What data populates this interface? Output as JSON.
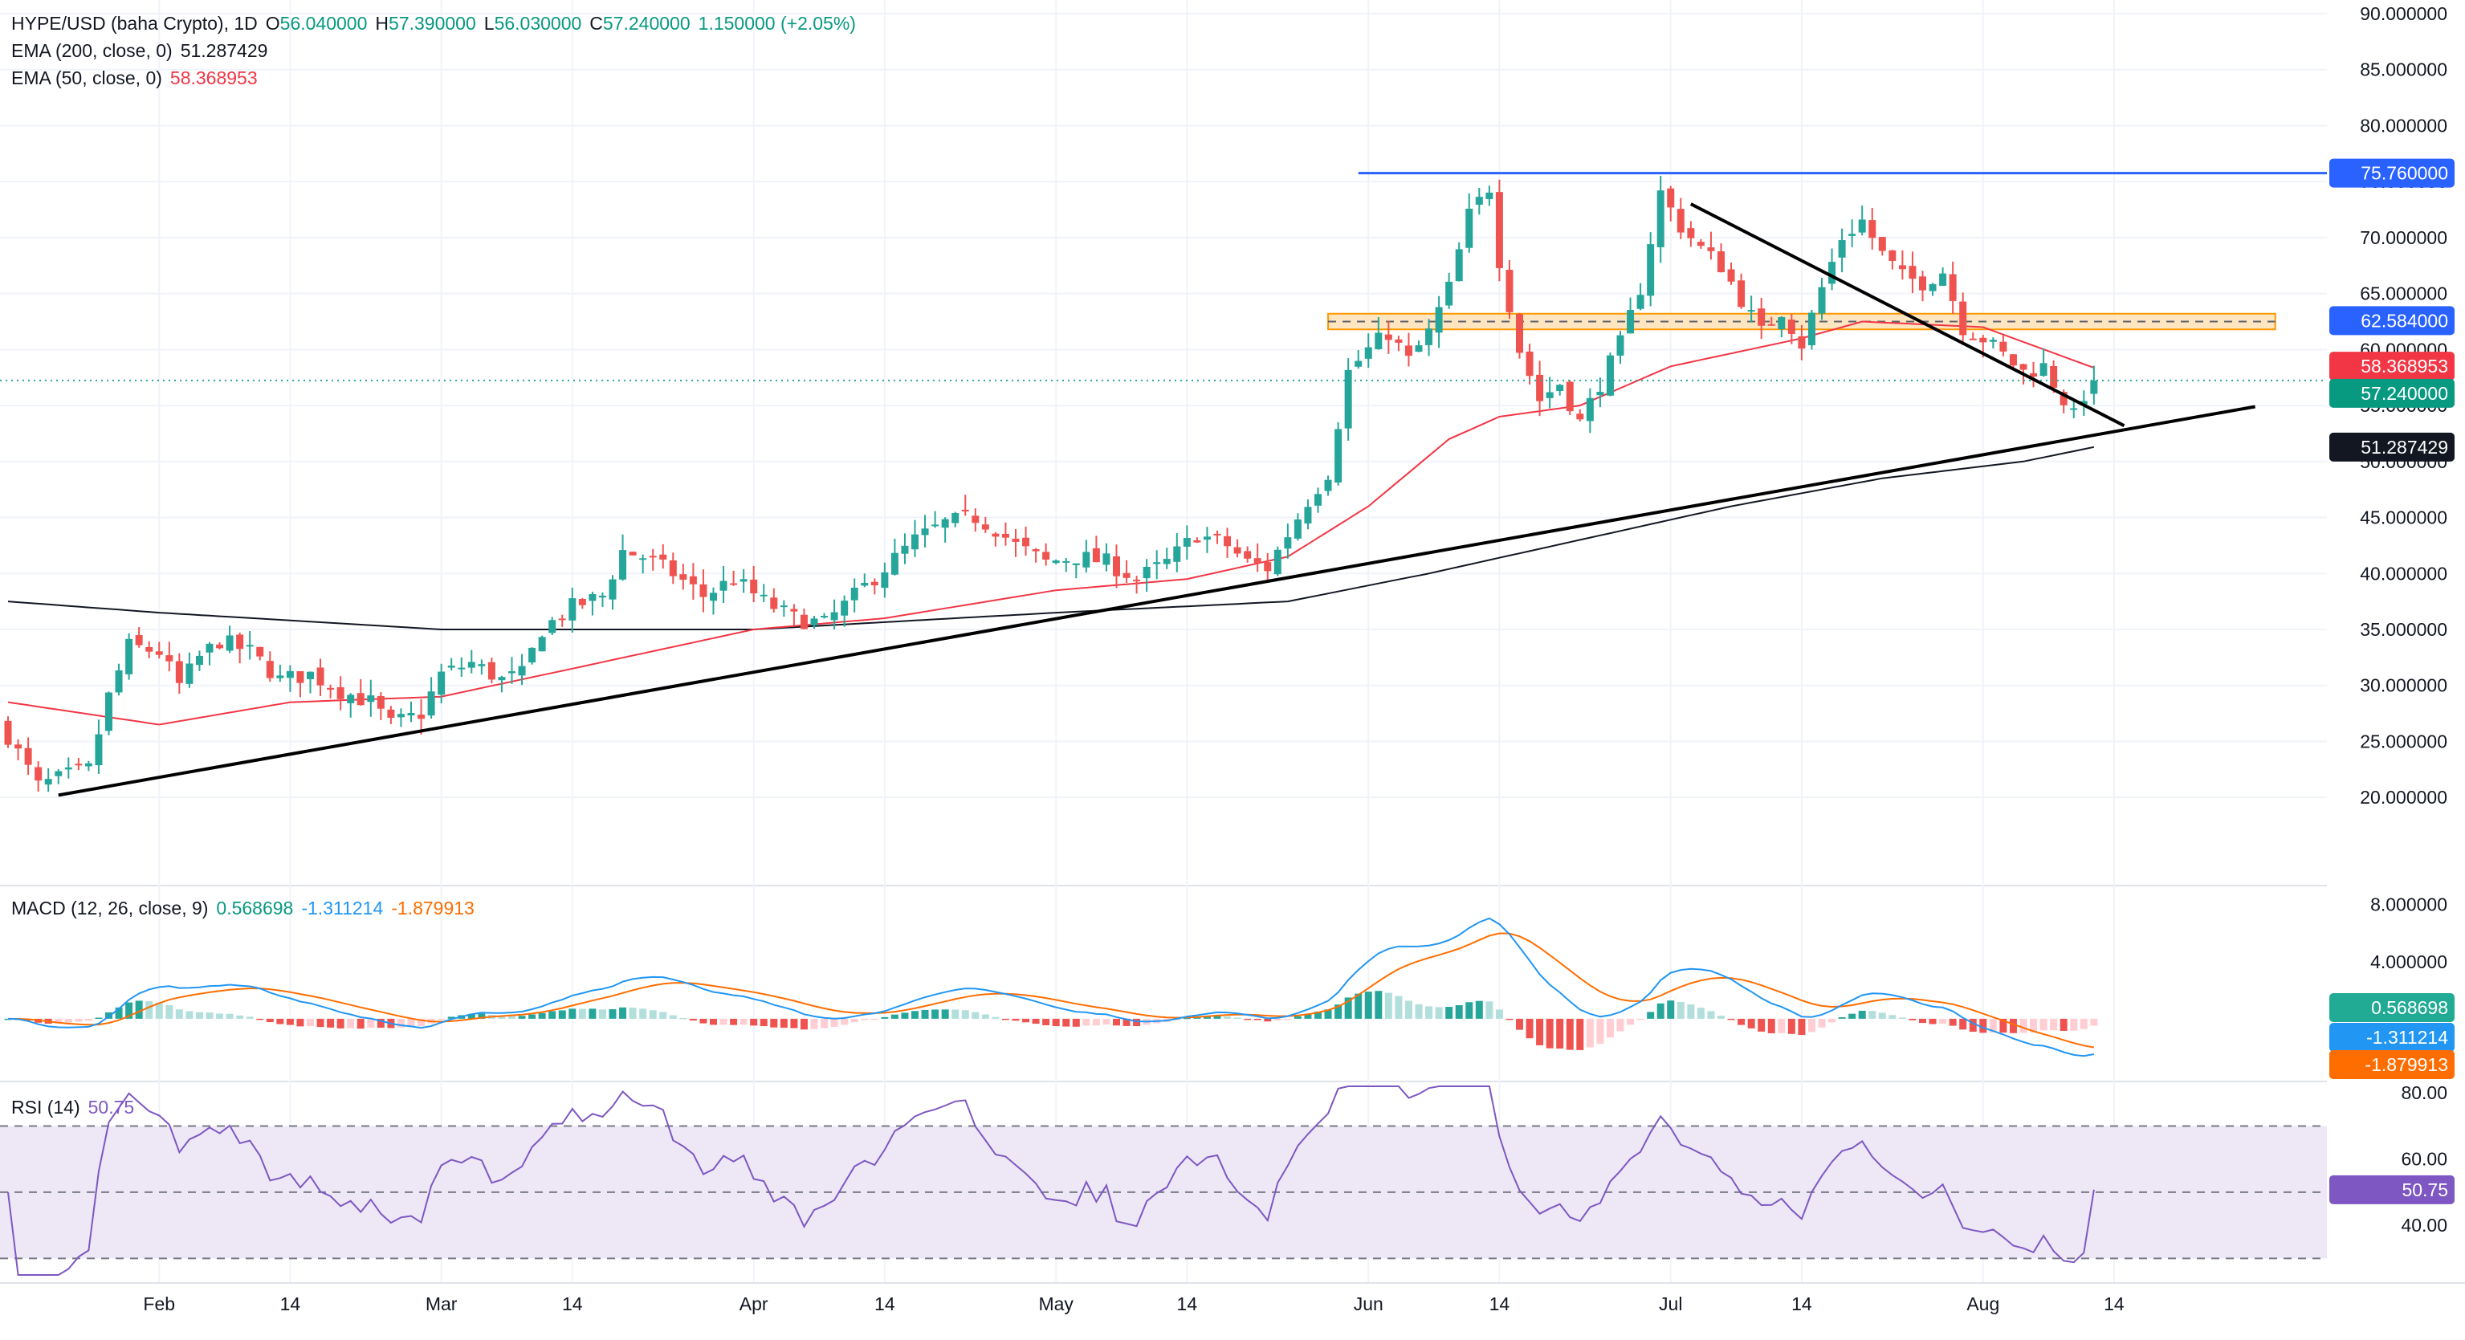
{
  "header": {
    "symbol": "HYPE/USD (baha Crypto), 1D",
    "ohlc": {
      "open_label": "O",
      "open": "56.040000",
      "high_label": "H",
      "high": "57.390000",
      "low_label": "L",
      "low": "56.030000",
      "close_label": "C",
      "close": "57.240000",
      "change": "1.150000 (+2.05%)"
    },
    "ema200": {
      "label": "EMA (200, close, 0)",
      "value": "51.287429"
    },
    "ema50": {
      "label": "EMA (50, close, 0)",
      "value": "58.368953"
    }
  },
  "macd_pane": {
    "label": "MACD (12, 26, close, 9)",
    "hist": "0.568698",
    "macd": "-1.311214",
    "signal": "-1.879913"
  },
  "rsi_pane": {
    "label": "RSI (14)",
    "value": "50.75"
  },
  "badges": {
    "resistance": "75.760000",
    "zone": "62.584000",
    "ema50": "58.368953",
    "price": "57.240000",
    "ema200": "51.287429",
    "macd_hist": "0.568698",
    "macd": "-1.311214",
    "signal": "-1.879913",
    "rsi": "50.75"
  },
  "colors": {
    "up": "#26a69a",
    "down": "#ef5350",
    "ema50": "#f23645",
    "ema200": "#131722",
    "macd": "#2196f3",
    "signal": "#ff6d00",
    "rsi": "#7e57c2",
    "level": "#2962ff",
    "zone_fill": "#ffe0b2",
    "zone_border": "#ff9800",
    "hist_up": "#26a69a",
    "hist_up_light": "#b2dfdb",
    "hist_down": "#ef5350",
    "hist_down_light": "#ffcdd2",
    "rsi_band": "#ede7f6"
  },
  "chart_data": {
    "type": "candlestick",
    "price_axis": {
      "range": [
        17,
        90
      ],
      "ticks": [
        "90.000000",
        "85.000000",
        "80.000000",
        "75.000000",
        "70.000000",
        "65.000000",
        "60.000000",
        "55.000000",
        "50.000000",
        "45.000000",
        "40.000000",
        "35.000000",
        "30.000000",
        "25.000000",
        "20.000000"
      ]
    },
    "time_axis": {
      "start_date": "2025-01-17",
      "end_date": "2025-08-12",
      "labels": [
        {
          "date": "2025-02-01",
          "label": "Feb"
        },
        {
          "date": "2025-02-14",
          "label": "14"
        },
        {
          "date": "2025-03-01",
          "label": "Mar"
        },
        {
          "date": "2025-03-14",
          "label": "14"
        },
        {
          "date": "2025-04-01",
          "label": "Apr"
        },
        {
          "date": "2025-04-14",
          "label": "14"
        },
        {
          "date": "2025-05-01",
          "label": "May"
        },
        {
          "date": "2025-05-14",
          "label": "14"
        },
        {
          "date": "2025-06-01",
          "label": "Jun"
        },
        {
          "date": "2025-06-14",
          "label": "14"
        },
        {
          "date": "2025-07-01",
          "label": "Jul"
        },
        {
          "date": "2025-07-14",
          "label": "14"
        },
        {
          "date": "2025-08-01",
          "label": "Aug"
        },
        {
          "date": "2025-08-14",
          "label": "14"
        }
      ]
    },
    "close_path": [
      [
        "2025-01-17",
        25.5
      ],
      [
        "2025-01-20",
        21.0
      ],
      [
        "2025-01-23",
        22.0
      ],
      [
        "2025-01-25",
        22.5
      ],
      [
        "2025-01-27",
        29.0
      ],
      [
        "2025-01-29",
        33.5
      ],
      [
        "2025-02-01",
        33.0
      ],
      [
        "2025-02-03",
        30.0
      ],
      [
        "2025-02-05",
        32.5
      ],
      [
        "2025-02-07",
        34.0
      ],
      [
        "2025-02-10",
        33.0
      ],
      [
        "2025-02-13",
        30.5
      ],
      [
        "2025-02-16",
        31.0
      ],
      [
        "2025-02-19",
        29.5
      ],
      [
        "2025-02-22",
        28.5
      ],
      [
        "2025-02-24",
        26.5
      ],
      [
        "2025-02-27",
        27.5
      ],
      [
        "2025-03-01",
        31.0
      ],
      [
        "2025-03-04",
        32.0
      ],
      [
        "2025-03-07",
        30.5
      ],
      [
        "2025-03-09",
        31.0
      ],
      [
        "2025-03-11",
        35.0
      ],
      [
        "2025-03-14",
        37.0
      ],
      [
        "2025-03-17",
        38.0
      ],
      [
        "2025-03-19",
        42.0
      ],
      [
        "2025-03-21",
        41.5
      ],
      [
        "2025-03-24",
        40.0
      ],
      [
        "2025-03-27",
        38.0
      ],
      [
        "2025-03-30",
        39.5
      ],
      [
        "2025-04-02",
        37.5
      ],
      [
        "2025-04-05",
        36.0
      ],
      [
        "2025-04-08",
        35.5
      ],
      [
        "2025-04-11",
        38.0
      ],
      [
        "2025-04-14",
        40.5
      ],
      [
        "2025-04-17",
        43.0
      ],
      [
        "2025-04-20",
        44.5
      ],
      [
        "2025-04-23",
        45.0
      ],
      [
        "2025-04-25",
        44.0
      ],
      [
        "2025-04-27",
        42.5
      ],
      [
        "2025-04-30",
        41.0
      ],
      [
        "2025-05-03",
        41.5
      ],
      [
        "2025-05-06",
        41.0
      ],
      [
        "2025-05-09",
        39.5
      ],
      [
        "2025-05-12",
        41.0
      ],
      [
        "2025-05-15",
        43.5
      ],
      [
        "2025-05-18",
        42.5
      ],
      [
        "2025-05-20",
        41.0
      ],
      [
        "2025-05-22",
        40.5
      ],
      [
        "2025-05-24",
        43.5
      ],
      [
        "2025-05-26",
        46.5
      ],
      [
        "2025-05-28",
        49.0
      ],
      [
        "2025-05-30",
        58.0
      ],
      [
        "2025-06-01",
        60.0
      ],
      [
        "2025-06-03",
        61.5
      ],
      [
        "2025-06-05",
        59.0
      ],
      [
        "2025-06-07",
        61.5
      ],
      [
        "2025-06-09",
        65.5
      ],
      [
        "2025-06-11",
        72.0
      ],
      [
        "2025-06-13",
        74.5
      ],
      [
        "2025-06-14",
        68.0
      ],
      [
        "2025-06-16",
        60.0
      ],
      [
        "2025-06-18",
        55.5
      ],
      [
        "2025-06-20",
        57.0
      ],
      [
        "2025-06-22",
        53.5
      ],
      [
        "2025-06-24",
        57.0
      ],
      [
        "2025-06-26",
        60.5
      ],
      [
        "2025-06-28",
        65.5
      ],
      [
        "2025-06-30",
        74.0
      ],
      [
        "2025-07-02",
        71.0
      ],
      [
        "2025-07-04",
        69.0
      ],
      [
        "2025-07-06",
        67.5
      ],
      [
        "2025-07-08",
        64.5
      ],
      [
        "2025-07-10",
        61.5
      ],
      [
        "2025-07-12",
        63.5
      ],
      [
        "2025-07-14",
        60.5
      ],
      [
        "2025-07-16",
        65.5
      ],
      [
        "2025-07-18",
        70.0
      ],
      [
        "2025-07-20",
        71.5
      ],
      [
        "2025-07-22",
        68.5
      ],
      [
        "2025-07-24",
        66.5
      ],
      [
        "2025-07-26",
        66.0
      ],
      [
        "2025-07-28",
        67.0
      ],
      [
        "2025-07-30",
        62.0
      ],
      [
        "2025-08-01",
        61.0
      ],
      [
        "2025-08-03",
        59.5
      ],
      [
        "2025-08-05",
        58.0
      ],
      [
        "2025-08-07",
        58.5
      ],
      [
        "2025-08-09",
        55.5
      ],
      [
        "2025-08-10",
        54.0
      ],
      [
        "2025-08-11",
        56.0
      ],
      [
        "2025-08-12",
        57.24
      ]
    ],
    "ema50_path": [
      [
        "2025-01-17",
        28.5
      ],
      [
        "2025-02-01",
        26.5
      ],
      [
        "2025-02-14",
        28.5
      ],
      [
        "2025-03-01",
        29.0
      ],
      [
        "2025-03-14",
        31.5
      ],
      [
        "2025-04-01",
        35.0
      ],
      [
        "2025-04-14",
        36.0
      ],
      [
        "2025-05-01",
        38.5
      ],
      [
        "2025-05-14",
        39.5
      ],
      [
        "2025-05-24",
        41.5
      ],
      [
        "2025-06-01",
        46.0
      ],
      [
        "2025-06-09",
        52.0
      ],
      [
        "2025-06-14",
        54.0
      ],
      [
        "2025-06-22",
        55.0
      ],
      [
        "2025-07-01",
        58.5
      ],
      [
        "2025-07-14",
        61.0
      ],
      [
        "2025-07-20",
        62.5
      ],
      [
        "2025-08-01",
        62.0
      ],
      [
        "2025-08-12",
        58.37
      ]
    ],
    "ema200_path": [
      [
        "2025-01-17",
        37.5
      ],
      [
        "2025-02-01",
        36.5
      ],
      [
        "2025-03-01",
        35.0
      ],
      [
        "2025-04-01",
        35.0
      ],
      [
        "2025-05-01",
        36.5
      ],
      [
        "2025-05-24",
        37.5
      ],
      [
        "2025-06-07",
        40.0
      ],
      [
        "2025-06-22",
        43.0
      ],
      [
        "2025-07-07",
        46.0
      ],
      [
        "2025-07-22",
        48.5
      ],
      [
        "2025-08-05",
        50.0
      ],
      [
        "2025-08-12",
        51.29
      ]
    ],
    "macd_axis": {
      "ticks": [
        "8.000000",
        "4.000000"
      ],
      "range": [
        -4.0,
        8.6
      ]
    },
    "rsi_axis": {
      "ticks": [
        "80.00",
        "60.00",
        "40.00"
      ],
      "range": [
        25,
        82
      ],
      "upper": 70,
      "middle": 50,
      "lower": 30
    },
    "annotations": [
      {
        "type": "horizontal",
        "price": 75.76,
        "from": "2025-05-31",
        "to": "axis"
      },
      {
        "type": "zone",
        "top": 63.2,
        "bottom": 61.8,
        "from": "2025-05-28",
        "to": "2025-08-30"
      },
      {
        "type": "trendline",
        "from": [
          "2025-01-22",
          20.2
        ],
        "to": [
          "2025-08-28",
          54.9
        ]
      },
      {
        "type": "trendline",
        "from": [
          "2025-07-03",
          73.0
        ],
        "to": [
          "2025-08-15",
          53.2
        ]
      }
    ]
  }
}
